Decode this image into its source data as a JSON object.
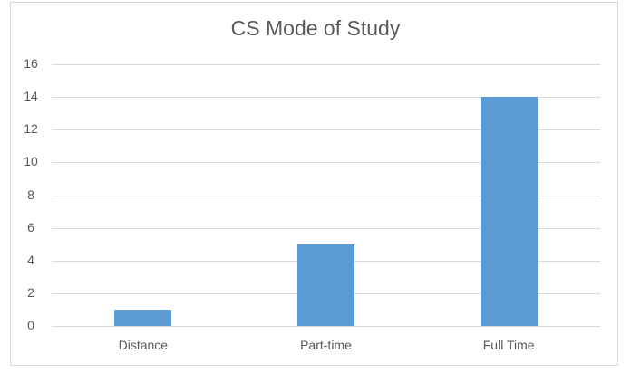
{
  "chart_data": {
    "type": "bar",
    "title": "CS Mode of Study",
    "categories": [
      "Distance",
      "Part-time",
      "Full Time"
    ],
    "values": [
      1,
      5,
      14
    ],
    "xlabel": "",
    "ylabel": "",
    "ylim": [
      0,
      16
    ],
    "yticks": [
      "0",
      "2",
      "4",
      "6",
      "8",
      "10",
      "12",
      "14",
      "16"
    ],
    "grid": true,
    "legend": "none",
    "bar_color": "#5b9bd5"
  }
}
